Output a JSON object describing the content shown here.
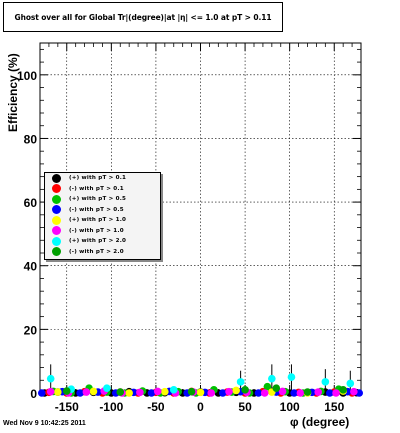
{
  "title": "Ghost over all for Global Tr|(degree)|at |η| <= 1.0 at pT > 0.11",
  "timestamp": "Wed Nov  9 10:42:25 2011",
  "colors": {
    "frame": "#000000",
    "legend_bg": "#f4f4f4",
    "grid": "#000000"
  },
  "chart_data": {
    "type": "scatter",
    "title": "Ghost over all for Global Tr|(degree)|at |η| <= 1.0 at pT > 0.11",
    "xlabel": "φ (degree)",
    "ylabel": "Efficiency (%)",
    "xlim": [
      -180,
      180
    ],
    "ylim": [
      0,
      110
    ],
    "grid": true,
    "legend_position": "left",
    "x_ticks": [
      -150,
      -100,
      -50,
      0,
      50,
      100,
      150
    ],
    "x_tick_labels": [
      "-150",
      "-100",
      "-50",
      "0",
      "50",
      "100",
      "150"
    ],
    "y_ticks": [
      0,
      20,
      40,
      60,
      80,
      100
    ],
    "y_tick_labels": [
      "0",
      "20",
      "40",
      "60",
      "80",
      "100"
    ],
    "series": [
      {
        "name": "(+) with pT > 0.1",
        "color": "#000000",
        "x": [
          -175,
          -160,
          -140,
          -120,
          -100,
          -80,
          -60,
          -40,
          -20,
          0,
          20,
          40,
          60,
          80,
          100,
          120,
          140,
          160,
          175
        ],
        "y": [
          0,
          0.3,
          0,
          0.2,
          0,
          0.4,
          0,
          0.1,
          0,
          0.3,
          0,
          0.2,
          0,
          0.5,
          0,
          0.2,
          0.3,
          0,
          0.1
        ]
      },
      {
        "name": "(-) with pT > 0.1",
        "color": "#ff0000",
        "x": [
          -170,
          -150,
          -130,
          -110,
          -90,
          -70,
          -50,
          -30,
          -10,
          10,
          30,
          50,
          70,
          90,
          110,
          130,
          150,
          170
        ],
        "y": [
          0.2,
          0,
          0.4,
          0,
          0.3,
          0,
          0.2,
          0,
          0.5,
          0,
          0.3,
          0,
          0.4,
          0,
          0.2,
          0,
          0.3,
          0
        ]
      },
      {
        "name": "(+) with pT > 0.5",
        "color": "#00c000",
        "x": [
          -165,
          -145,
          -125,
          -105,
          -85,
          -65,
          -45,
          -25,
          -5,
          15,
          35,
          55,
          75,
          95,
          115,
          135,
          155
        ],
        "y": [
          0.5,
          0,
          1.5,
          0.3,
          0,
          0.6,
          0,
          0.4,
          0,
          1.0,
          0.3,
          0,
          2.0,
          0.4,
          0,
          0.5,
          1.2
        ]
      },
      {
        "name": "(-) with pT > 0.5",
        "color": "#0000ff",
        "x": [
          -178,
          -155,
          -135,
          -115,
          -95,
          -75,
          -55,
          -35,
          -15,
          5,
          25,
          45,
          65,
          85,
          105,
          125,
          145,
          165,
          178
        ],
        "y": [
          0,
          0.4,
          0,
          0.3,
          0,
          0.2,
          0,
          0.5,
          0,
          0.2,
          0,
          0.4,
          0,
          0.3,
          0,
          0.2,
          0,
          0.4,
          0
        ]
      },
      {
        "name": "(+) with pT > 1.0",
        "color": "#ffff00",
        "x": [
          -160,
          -120,
          -80,
          -40,
          0,
          40,
          80,
          120,
          160
        ],
        "y": [
          0.3,
          0.5,
          0,
          0.4,
          0.2,
          0.8,
          0.3,
          0,
          0.6
        ]
      },
      {
        "name": "(-) with pT > 1.0",
        "color": "#ff00ff",
        "x": [
          -168,
          -148,
          -128,
          -108,
          -88,
          -68,
          -48,
          -28,
          -8,
          12,
          32,
          52,
          72,
          92,
          112,
          132,
          152,
          172
        ],
        "y": [
          0.4,
          0,
          0.3,
          0.6,
          0,
          0.2,
          0.5,
          0,
          0.3,
          0,
          0.4,
          0.2,
          0,
          0.5,
          0,
          0.3,
          0,
          0.4
        ]
      },
      {
        "name": "(+) with pT > 2.0",
        "color": "#00ffff",
        "x": [
          -168,
          -145,
          -105,
          -30,
          45,
          80,
          102,
          140,
          168
        ],
        "y": [
          4.5,
          1.2,
          1.5,
          1.0,
          3.5,
          4.5,
          5.0,
          3.5,
          3.0
        ]
      },
      {
        "name": "(-) with pT > 2.0",
        "color": "#00a000",
        "x": [
          -150,
          -90,
          -10,
          50,
          85,
          120,
          160
        ],
        "y": [
          0.6,
          0.3,
          0.4,
          1.0,
          1.5,
          0.3,
          1.0
        ]
      }
    ],
    "error_bars": [
      {
        "x": -168,
        "lo": 0,
        "hi": 9
      },
      {
        "x": 45,
        "lo": 0,
        "hi": 7
      },
      {
        "x": 80,
        "lo": 0,
        "hi": 9
      },
      {
        "x": 102,
        "lo": 0,
        "hi": 9
      },
      {
        "x": 140,
        "lo": 0,
        "hi": 7.5
      },
      {
        "x": 168,
        "lo": 0,
        "hi": 7
      }
    ]
  }
}
